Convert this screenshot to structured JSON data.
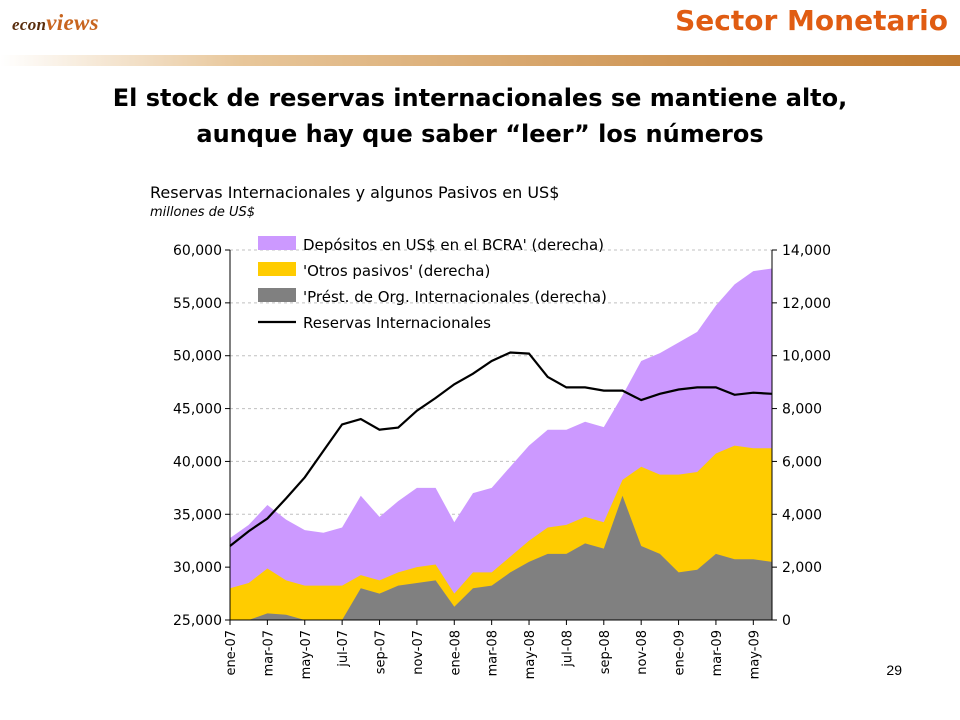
{
  "header": {
    "logo_small": "econ",
    "logo_big": "views",
    "section_title": "Sector Monetario"
  },
  "headline": {
    "line1": "El stock de reservas internacionales se mantiene alto,",
    "line2": "aunque hay que saber “leer” los números"
  },
  "page_number": "29",
  "colors": {
    "deposits": "#cc99ff",
    "other_liabilities": "#ffcc00",
    "org_loans": "#808080",
    "reserves_line": "#000000",
    "section_title": "#e05c12",
    "logo": "#5a2e0e"
  },
  "chart_data": {
    "type": "area",
    "title": "Reservas Internacionales y algunos Pasivos en US$",
    "subtitle": "millones de US$",
    "x_ticks": [
      "ene-07",
      "mar-07",
      "may-07",
      "jul-07",
      "sep-07",
      "nov-07",
      "ene-08",
      "mar-08",
      "may-08",
      "jul-08",
      "sep-08",
      "nov-08",
      "ene-09",
      "mar-09",
      "may-09"
    ],
    "x_range": [
      "2007-01",
      "2009-06"
    ],
    "y_left": {
      "range": [
        25000,
        60000
      ],
      "ticks": [
        "25,000",
        "30,000",
        "35,000",
        "40,000",
        "45,000",
        "50,000",
        "55,000",
        "60,000"
      ]
    },
    "y_right": {
      "range": [
        0,
        14000
      ],
      "ticks": [
        "0",
        "2,000",
        "4,000",
        "6,000",
        "8,000",
        "10,000",
        "12,000",
        "14,000"
      ]
    },
    "legend_position": "top-left",
    "grid": "horizontal",
    "series": [
      {
        "name": "Depósitos en US$ en el BCRA' (derecha)",
        "kind": "stacked_area",
        "axis": "right",
        "values": [
          [
            "2007-01",
            1900
          ],
          [
            "2007-02",
            2200
          ],
          [
            "2007-03",
            2400
          ],
          [
            "2007-04",
            2300
          ],
          [
            "2007-05",
            2100
          ],
          [
            "2007-06",
            2000
          ],
          [
            "2007-07",
            2200
          ],
          [
            "2007-08",
            3000
          ],
          [
            "2007-09",
            2400
          ],
          [
            "2007-10",
            2700
          ],
          [
            "2007-11",
            3000
          ],
          [
            "2007-12",
            2900
          ],
          [
            "2008-01",
            2700
          ],
          [
            "2008-02",
            3000
          ],
          [
            "2008-03",
            3200
          ],
          [
            "2008-04",
            3400
          ],
          [
            "2008-05",
            3600
          ],
          [
            "2008-06",
            3700
          ],
          [
            "2008-07",
            3600
          ],
          [
            "2008-08",
            3600
          ],
          [
            "2008-09",
            3600
          ],
          [
            "2008-10",
            3200
          ],
          [
            "2008-11",
            4000
          ],
          [
            "2008-12",
            4600
          ],
          [
            "2009-01",
            5000
          ],
          [
            "2009-02",
            5300
          ],
          [
            "2009-03",
            5600
          ],
          [
            "2009-04",
            6100
          ],
          [
            "2009-05",
            6700
          ],
          [
            "2009-06",
            6800
          ]
        ]
      },
      {
        "name": "'Otros pasivos' (derecha)",
        "kind": "stacked_area",
        "axis": "right",
        "values": [
          [
            "2007-01",
            1200
          ],
          [
            "2007-02",
            1400
          ],
          [
            "2007-03",
            1700
          ],
          [
            "2007-04",
            1300
          ],
          [
            "2007-05",
            1300
          ],
          [
            "2007-06",
            1300
          ],
          [
            "2007-07",
            1300
          ],
          [
            "2007-08",
            500
          ],
          [
            "2007-09",
            500
          ],
          [
            "2007-10",
            500
          ],
          [
            "2007-11",
            600
          ],
          [
            "2007-12",
            600
          ],
          [
            "2008-01",
            500
          ],
          [
            "2008-02",
            600
          ],
          [
            "2008-03",
            500
          ],
          [
            "2008-04",
            600
          ],
          [
            "2008-05",
            800
          ],
          [
            "2008-06",
            1000
          ],
          [
            "2008-07",
            1100
          ],
          [
            "2008-08",
            1000
          ],
          [
            "2008-09",
            1000
          ],
          [
            "2008-10",
            600
          ],
          [
            "2008-11",
            3000
          ],
          [
            "2008-12",
            3000
          ],
          [
            "2009-01",
            3700
          ],
          [
            "2009-02",
            3700
          ],
          [
            "2009-03",
            3800
          ],
          [
            "2009-04",
            4300
          ],
          [
            "2009-05",
            4200
          ],
          [
            "2009-06",
            4300
          ]
        ]
      },
      {
        "name": "'Prést. de Org. Internacionales (derecha)",
        "kind": "stacked_area",
        "axis": "right",
        "values": [
          [
            "2007-01",
            0
          ],
          [
            "2007-02",
            0
          ],
          [
            "2007-03",
            250
          ],
          [
            "2007-04",
            200
          ],
          [
            "2007-05",
            0
          ],
          [
            "2007-06",
            0
          ],
          [
            "2007-07",
            0
          ],
          [
            "2007-08",
            1200
          ],
          [
            "2007-09",
            1000
          ],
          [
            "2007-10",
            1300
          ],
          [
            "2007-11",
            1400
          ],
          [
            "2007-12",
            1500
          ],
          [
            "2008-01",
            500
          ],
          [
            "2008-02",
            1200
          ],
          [
            "2008-03",
            1300
          ],
          [
            "2008-04",
            1800
          ],
          [
            "2008-05",
            2200
          ],
          [
            "2008-06",
            2500
          ],
          [
            "2008-07",
            2500
          ],
          [
            "2008-08",
            2900
          ],
          [
            "2008-09",
            2700
          ],
          [
            "2008-10",
            4700
          ],
          [
            "2008-11",
            2800
          ],
          [
            "2008-12",
            2500
          ],
          [
            "2009-01",
            1800
          ],
          [
            "2009-02",
            1900
          ],
          [
            "2009-03",
            2500
          ],
          [
            "2009-04",
            2300
          ],
          [
            "2009-05",
            2300
          ],
          [
            "2009-06",
            2200
          ]
        ]
      },
      {
        "name": "Reservas Internacionales",
        "kind": "line",
        "axis": "left",
        "values": [
          [
            "2007-01",
            32000
          ],
          [
            "2007-02",
            33400
          ],
          [
            "2007-03",
            34600
          ],
          [
            "2007-04",
            36500
          ],
          [
            "2007-05",
            38500
          ],
          [
            "2007-06",
            41000
          ],
          [
            "2007-07",
            43500
          ],
          [
            "2007-08",
            44000
          ],
          [
            "2007-09",
            43000
          ],
          [
            "2007-10",
            43200
          ],
          [
            "2007-11",
            44800
          ],
          [
            "2007-12",
            46000
          ],
          [
            "2008-01",
            47300
          ],
          [
            "2008-02",
            48300
          ],
          [
            "2008-03",
            49500
          ],
          [
            "2008-04",
            50300
          ],
          [
            "2008-05",
            50200
          ],
          [
            "2008-06",
            48000
          ],
          [
            "2008-07",
            47000
          ],
          [
            "2008-08",
            47000
          ],
          [
            "2008-09",
            46700
          ],
          [
            "2008-10",
            46700
          ],
          [
            "2008-11",
            45800
          ],
          [
            "2008-12",
            46400
          ],
          [
            "2009-01",
            46800
          ],
          [
            "2009-02",
            47000
          ],
          [
            "2009-03",
            47000
          ],
          [
            "2009-04",
            46300
          ],
          [
            "2009-05",
            46500
          ],
          [
            "2009-06",
            46400
          ]
        ]
      }
    ]
  }
}
